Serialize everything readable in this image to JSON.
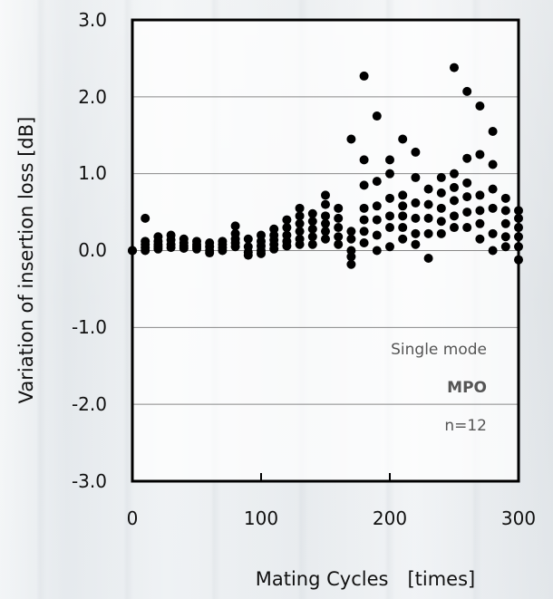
{
  "chart_data": {
    "type": "scatter",
    "xlabel": "Mating Cycles　[times]",
    "ylabel": "Variation of  insertion loss  [dB]",
    "xlim": [
      0,
      300
    ],
    "ylim": [
      -3.0,
      3.0
    ],
    "x_ticks": [
      "0",
      "100",
      "200",
      "300"
    ],
    "y_ticks": [
      "3.0",
      "2.0",
      "1.0",
      "0.0",
      "-1.0",
      "-2.0",
      "-3.0"
    ],
    "grid": "horizontal",
    "annotations": [
      "Single mode",
      "MPO",
      "n=12"
    ],
    "series": [
      {
        "points": [
          [
            0,
            0
          ],
          [
            0,
            0
          ],
          [
            0,
            0
          ],
          [
            10,
            0.42
          ],
          [
            10,
            0.12
          ],
          [
            10,
            0.08
          ],
          [
            10,
            0.04
          ],
          [
            10,
            0
          ],
          [
            20,
            0.18
          ],
          [
            20,
            0.12
          ],
          [
            20,
            0.08
          ],
          [
            20,
            0.05
          ],
          [
            20,
            0.02
          ],
          [
            30,
            0.2
          ],
          [
            30,
            0.14
          ],
          [
            30,
            0.08
          ],
          [
            30,
            0.04
          ],
          [
            40,
            0.15
          ],
          [
            40,
            0.1
          ],
          [
            40,
            0.06
          ],
          [
            40,
            0.03
          ],
          [
            50,
            0.12
          ],
          [
            50,
            0.08
          ],
          [
            50,
            0.05
          ],
          [
            50,
            0.02
          ],
          [
            60,
            0.1
          ],
          [
            60,
            0.05
          ],
          [
            60,
            0.0
          ],
          [
            60,
            -0.03
          ],
          [
            70,
            0.12
          ],
          [
            70,
            0.08
          ],
          [
            70,
            0.04
          ],
          [
            70,
            0.0
          ],
          [
            80,
            0.32
          ],
          [
            80,
            0.22
          ],
          [
            80,
            0.15
          ],
          [
            80,
            0.1
          ],
          [
            80,
            0.05
          ],
          [
            90,
            0.15
          ],
          [
            90,
            0.05
          ],
          [
            90,
            -0.02
          ],
          [
            90,
            -0.06
          ],
          [
            100,
            0.2
          ],
          [
            100,
            0.12
          ],
          [
            100,
            0.06
          ],
          [
            100,
            0.0
          ],
          [
            100,
            -0.04
          ],
          [
            110,
            0.28
          ],
          [
            110,
            0.2
          ],
          [
            110,
            0.14
          ],
          [
            110,
            0.08
          ],
          [
            110,
            0.02
          ],
          [
            120,
            0.4
          ],
          [
            120,
            0.3
          ],
          [
            120,
            0.2
          ],
          [
            120,
            0.12
          ],
          [
            120,
            0.06
          ],
          [
            130,
            0.55
          ],
          [
            130,
            0.45
          ],
          [
            130,
            0.35
          ],
          [
            130,
            0.25
          ],
          [
            130,
            0.15
          ],
          [
            130,
            0.08
          ],
          [
            140,
            0.48
          ],
          [
            140,
            0.38
          ],
          [
            140,
            0.28
          ],
          [
            140,
            0.18
          ],
          [
            140,
            0.08
          ],
          [
            150,
            0.72
          ],
          [
            150,
            0.6
          ],
          [
            150,
            0.45
          ],
          [
            150,
            0.35
          ],
          [
            150,
            0.25
          ],
          [
            150,
            0.15
          ],
          [
            160,
            0.55
          ],
          [
            160,
            0.42
          ],
          [
            160,
            0.3
          ],
          [
            160,
            0.18
          ],
          [
            160,
            0.08
          ],
          [
            170,
            1.45
          ],
          [
            170,
            0.25
          ],
          [
            170,
            0.15
          ],
          [
            170,
            0.0
          ],
          [
            170,
            -0.08
          ],
          [
            170,
            -0.18
          ],
          [
            180,
            2.27
          ],
          [
            180,
            1.18
          ],
          [
            180,
            0.85
          ],
          [
            180,
            0.55
          ],
          [
            180,
            0.4
          ],
          [
            180,
            0.25
          ],
          [
            180,
            0.1
          ],
          [
            190,
            1.75
          ],
          [
            190,
            0.9
          ],
          [
            190,
            0.58
          ],
          [
            190,
            0.4
          ],
          [
            190,
            0.2
          ],
          [
            190,
            0.0
          ],
          [
            200,
            1.18
          ],
          [
            200,
            1.0
          ],
          [
            200,
            0.68
          ],
          [
            200,
            0.45
          ],
          [
            200,
            0.3
          ],
          [
            200,
            0.05
          ],
          [
            210,
            1.45
          ],
          [
            210,
            0.72
          ],
          [
            210,
            0.58
          ],
          [
            210,
            0.45
          ],
          [
            210,
            0.3
          ],
          [
            210,
            0.15
          ],
          [
            220,
            1.28
          ],
          [
            220,
            0.95
          ],
          [
            220,
            0.62
          ],
          [
            220,
            0.42
          ],
          [
            220,
            0.22
          ],
          [
            220,
            0.08
          ],
          [
            230,
            0.8
          ],
          [
            230,
            0.6
          ],
          [
            230,
            0.42
          ],
          [
            230,
            0.22
          ],
          [
            230,
            -0.1
          ],
          [
            240,
            0.95
          ],
          [
            240,
            0.75
          ],
          [
            240,
            0.55
          ],
          [
            240,
            0.38
          ],
          [
            240,
            0.22
          ],
          [
            250,
            2.38
          ],
          [
            250,
            1.0
          ],
          [
            250,
            0.82
          ],
          [
            250,
            0.65
          ],
          [
            250,
            0.45
          ],
          [
            250,
            0.3
          ],
          [
            260,
            2.07
          ],
          [
            260,
            1.2
          ],
          [
            260,
            0.88
          ],
          [
            260,
            0.7
          ],
          [
            260,
            0.5
          ],
          [
            260,
            0.3
          ],
          [
            270,
            1.88
          ],
          [
            270,
            1.25
          ],
          [
            270,
            0.72
          ],
          [
            270,
            0.52
          ],
          [
            270,
            0.35
          ],
          [
            270,
            0.15
          ],
          [
            280,
            1.55
          ],
          [
            280,
            1.12
          ],
          [
            280,
            0.8
          ],
          [
            280,
            0.55
          ],
          [
            280,
            0.22
          ],
          [
            280,
            0.0
          ],
          [
            290,
            0.68
          ],
          [
            290,
            0.52
          ],
          [
            290,
            0.35
          ],
          [
            290,
            0.18
          ],
          [
            290,
            0.05
          ],
          [
            300,
            0.52
          ],
          [
            300,
            0.42
          ],
          [
            300,
            0.3
          ],
          [
            300,
            0.18
          ],
          [
            300,
            0.05
          ],
          [
            300,
            -0.12
          ]
        ]
      }
    ]
  },
  "colors": {
    "marker": "#000000",
    "grid": "#888888",
    "frame": "#000000",
    "note_text": "#555555"
  }
}
